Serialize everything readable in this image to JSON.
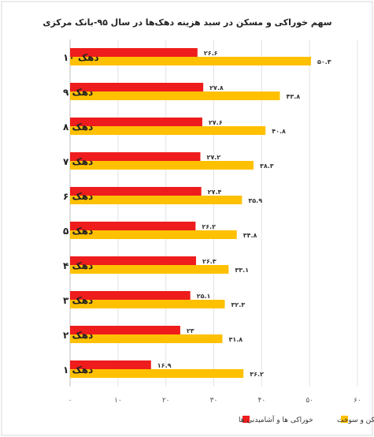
{
  "chart_data": {
    "type": "bar",
    "orientation": "horizontal",
    "title": "سهم خوراکی و مسکن در سبد هزینه دهک‌ها در سال ۹۵-بانک مرکزی",
    "categories": [
      "دهک ۱۰",
      "دهک ۹",
      "دهک ۸",
      "دهک ۷",
      "دهک ۶",
      "دهک ۵",
      "دهک ۴",
      "دهک ۳",
      "دهک ۲",
      "دهک ۱"
    ],
    "series": [
      {
        "name": "خوراکی ها و آشامیدنی ها",
        "color": "#ee1c1c",
        "values": [
          26.6,
          27.8,
          27.6,
          27.2,
          27.4,
          26.2,
          26.3,
          25.1,
          23,
          16.9
        ],
        "labels": [
          "۲۶.۶",
          "۲۷.۸",
          "۲۷.۶",
          "۲۷.۲",
          "۲۷.۴",
          "۲۶.۲",
          "۲۶.۳",
          "۲۵.۱",
          "۲۳",
          "۱۶.۹"
        ]
      },
      {
        "name": "مسکن و سوخت",
        "color": "#ffc000",
        "values": [
          50.3,
          43.8,
          40.8,
          38.3,
          35.9,
          34.8,
          33.1,
          32.3,
          31.8,
          36.2
        ],
        "labels": [
          "۵۰.۳",
          "۴۳.۸",
          "۴۰.۸",
          "۳۸.۳",
          "۳۵.۹",
          "۳۴.۸",
          "۳۳.۱",
          "۳۲.۳",
          "۳۱.۸",
          "۳۶.۲"
        ]
      }
    ],
    "xlim": [
      0,
      60
    ],
    "xticks": [
      0,
      10,
      20,
      30,
      40,
      50,
      60
    ],
    "xtick_labels": [
      "۰",
      "۱۰",
      "۲۰",
      "۳۰",
      "۴۰",
      "۵۰",
      "۶۰"
    ],
    "grid": "vertical",
    "legend": "bottom"
  }
}
